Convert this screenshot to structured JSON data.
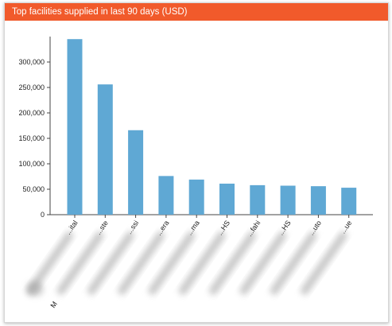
{
  "chart_data": {
    "type": "bar",
    "title": "Top facilities supplied in last 90 days (USD)",
    "xlabel": "",
    "ylabel": "",
    "categories": [
      "...ital",
      "...ste",
      "...ssi",
      "...era",
      "...ma",
      "...HS",
      "...fahi",
      "...HS",
      "...uto",
      "...ue"
    ],
    "values": [
      345000,
      256000,
      166000,
      76000,
      69000,
      61000,
      58000,
      57000,
      56000,
      53000
    ],
    "y_ticks": [
      "0",
      "50,000",
      "100,000",
      "150,000",
      "200,000",
      "250,000",
      "300,000"
    ],
    "ylim": [
      0,
      350000
    ],
    "grid": false,
    "bar_color": "#5fa8d4",
    "header_color": "#f15a2b",
    "redacted_labels": true,
    "partial_label_bottom": "M"
  }
}
